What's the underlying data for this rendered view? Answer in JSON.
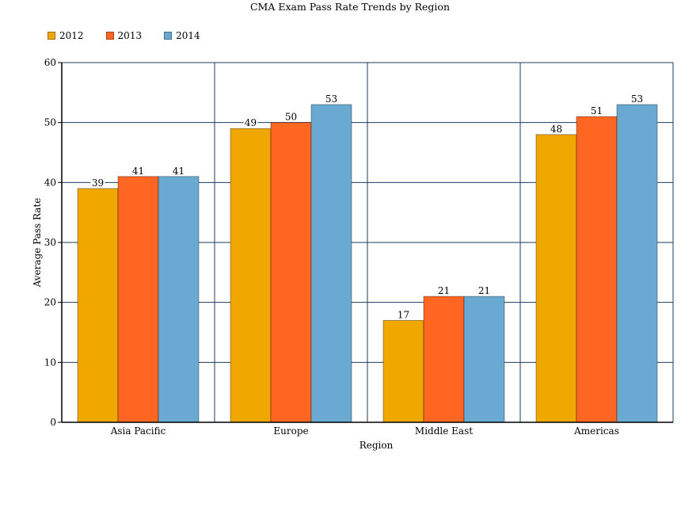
{
  "chart_data": {
    "type": "bar",
    "title": "CMA Exam Pass Rate Trends by Region",
    "xlabel": "Region",
    "ylabel": "Average Pass Rate",
    "categories": [
      "Asia Pacific",
      "Europe",
      "Middle East",
      "Americas"
    ],
    "series": [
      {
        "name": "2012",
        "color": "#f0a800",
        "values": [
          39,
          49,
          17,
          48
        ]
      },
      {
        "name": "2013",
        "color": "#ff6622",
        "values": [
          41,
          50,
          21,
          51
        ]
      },
      {
        "name": "2014",
        "color": "#6aaad2",
        "values": [
          41,
          53,
          21,
          53
        ]
      }
    ],
    "ylim": [
      0,
      60
    ],
    "yticks": [
      0,
      10,
      20,
      30,
      40,
      50,
      60
    ],
    "grid": true,
    "legend_position": "top-left",
    "data_labels": true
  }
}
